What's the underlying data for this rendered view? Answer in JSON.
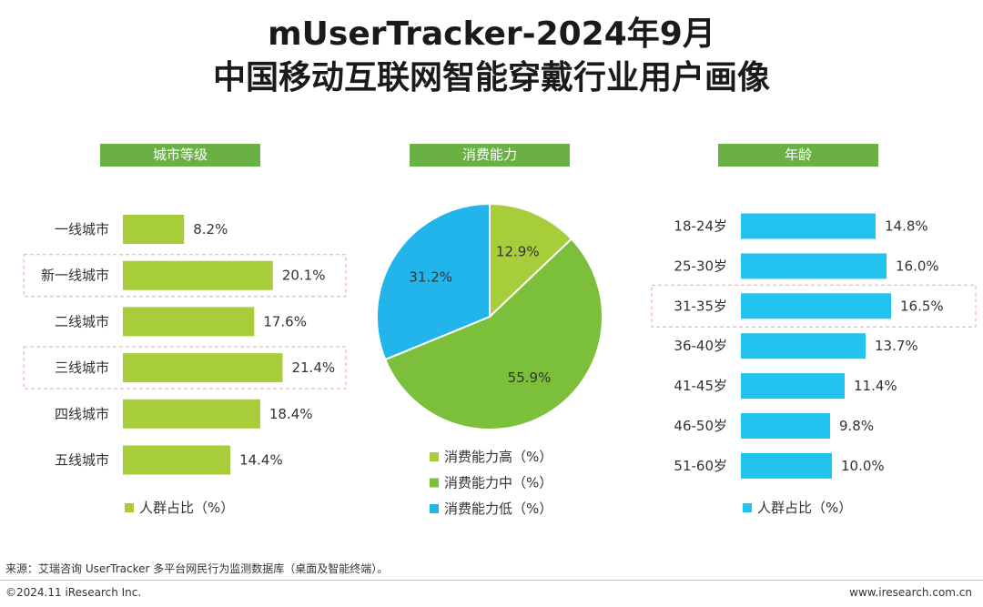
{
  "header": {
    "title_line1": "mUserTracker-2024年9月",
    "title_line2": "中国移动互联网智能穿戴行业用户画像"
  },
  "colors": {
    "header_bg": "#6ab144",
    "bar_green": "#a8cd3a",
    "bar_blue": "#22c3ee",
    "pie_high": "#a8cd3a",
    "pie_mid": "#7bbf3a",
    "pie_low": "#22b5ec",
    "highlight_border": "#f0a0b4"
  },
  "chart_data": [
    {
      "type": "bar",
      "orientation": "horizontal",
      "title": "城市等级",
      "categories": [
        "一线城市",
        "新一线城市",
        "二线城市",
        "三线城市",
        "四线城市",
        "五线城市"
      ],
      "values": [
        8.2,
        20.1,
        17.6,
        21.4,
        18.4,
        14.4
      ],
      "labels": [
        "8.2%",
        "20.1%",
        "17.6%",
        "21.4%",
        "18.4%",
        "14.4%"
      ],
      "highlighted": [
        "新一线城市",
        "三线城市"
      ],
      "legend": "人群占比（%）",
      "xlim": [
        0,
        25
      ]
    },
    {
      "type": "pie",
      "title": "消费能力",
      "categories": [
        "消费能力高（%）",
        "消费能力中（%）",
        "消费能力低（%）"
      ],
      "values": [
        12.9,
        55.9,
        31.2
      ],
      "labels": [
        "12.9%",
        "55.9%",
        "31.2%"
      ]
    },
    {
      "type": "bar",
      "orientation": "horizontal",
      "title": "年龄",
      "categories": [
        "18-24岁",
        "25-30岁",
        "31-35岁",
        "36-40岁",
        "41-45岁",
        "46-50岁",
        "51-60岁"
      ],
      "values": [
        14.8,
        16.0,
        16.5,
        13.7,
        11.4,
        9.8,
        10.0
      ],
      "labels": [
        "14.8%",
        "16.0%",
        "16.5%",
        "13.7%",
        "11.4%",
        "9.8%",
        "10.0%"
      ],
      "highlighted": [
        "31-35岁"
      ],
      "legend": "人群占比（%）",
      "xlim": [
        0,
        20
      ]
    }
  ],
  "footer": {
    "source": "来源：艾瑞咨询 UserTracker 多平台网民行为监测数据库（桌面及智能终端）。",
    "copyright": "©2024.11 iResearch Inc.",
    "website": "www.iresearch.com.cn"
  }
}
